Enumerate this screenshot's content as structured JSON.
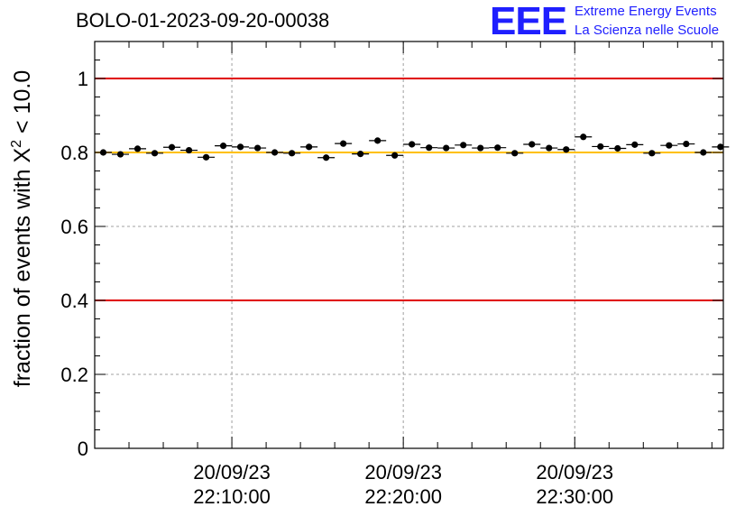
{
  "header": {
    "run_title": "BOLO-01-2023-09-20-00038"
  },
  "logo": {
    "mark": "EEE",
    "line1": "Extreme Energy Events",
    "line2": "La Scienza nelle Scuole",
    "color": "#1f1fff"
  },
  "chart_data": {
    "type": "scatter",
    "title": "",
    "xlabel": "",
    "ylabel": "fraction of events with X² < 10.0",
    "ylim": [
      0,
      1.1
    ],
    "yticks": [
      "0",
      "0.2",
      "0.4",
      "0.6",
      "0.8",
      "1"
    ],
    "xlim": [
      "20/09/23 22:02:00",
      "20/09/23 22:38:40"
    ],
    "xticks": [
      {
        "date": "20/09/23",
        "time": "22:10:00"
      },
      {
        "date": "20/09/23",
        "time": "22:20:00"
      },
      {
        "date": "20/09/23",
        "time": "22:30:00"
      }
    ],
    "grid": true,
    "thresholds": [
      {
        "y": 1.0,
        "color": "#e00000"
      },
      {
        "y": 0.4,
        "color": "#e00000"
      },
      {
        "y": 0.8,
        "color": "#ffc000"
      }
    ],
    "bin_minutes": 1,
    "series": [
      {
        "color": "#000000",
        "x": [
          "22:02:30",
          "22:03:30",
          "22:04:30",
          "22:05:30",
          "22:06:30",
          "22:07:30",
          "22:08:30",
          "22:09:30",
          "22:10:30",
          "22:11:30",
          "22:12:30",
          "22:13:30",
          "22:14:30",
          "22:15:30",
          "22:16:30",
          "22:17:30",
          "22:18:30",
          "22:19:30",
          "22:20:30",
          "22:21:30",
          "22:22:30",
          "22:23:30",
          "22:24:30",
          "22:25:30",
          "22:26:30",
          "22:27:30",
          "22:28:30",
          "22:29:30",
          "22:30:30",
          "22:31:30",
          "22:32:30",
          "22:33:30",
          "22:34:30",
          "22:35:30",
          "22:36:30",
          "22:37:30",
          "22:38:30"
        ],
        "y": [
          0.8,
          0.795,
          0.81,
          0.798,
          0.814,
          0.806,
          0.787,
          0.818,
          0.815,
          0.812,
          0.8,
          0.798,
          0.815,
          0.786,
          0.824,
          0.796,
          0.832,
          0.792,
          0.822,
          0.813,
          0.812,
          0.82,
          0.812,
          0.813,
          0.798,
          0.822,
          0.812,
          0.808,
          0.842,
          0.816,
          0.811,
          0.821,
          0.798,
          0.819,
          0.823,
          0.8,
          0.815
        ]
      }
    ]
  }
}
